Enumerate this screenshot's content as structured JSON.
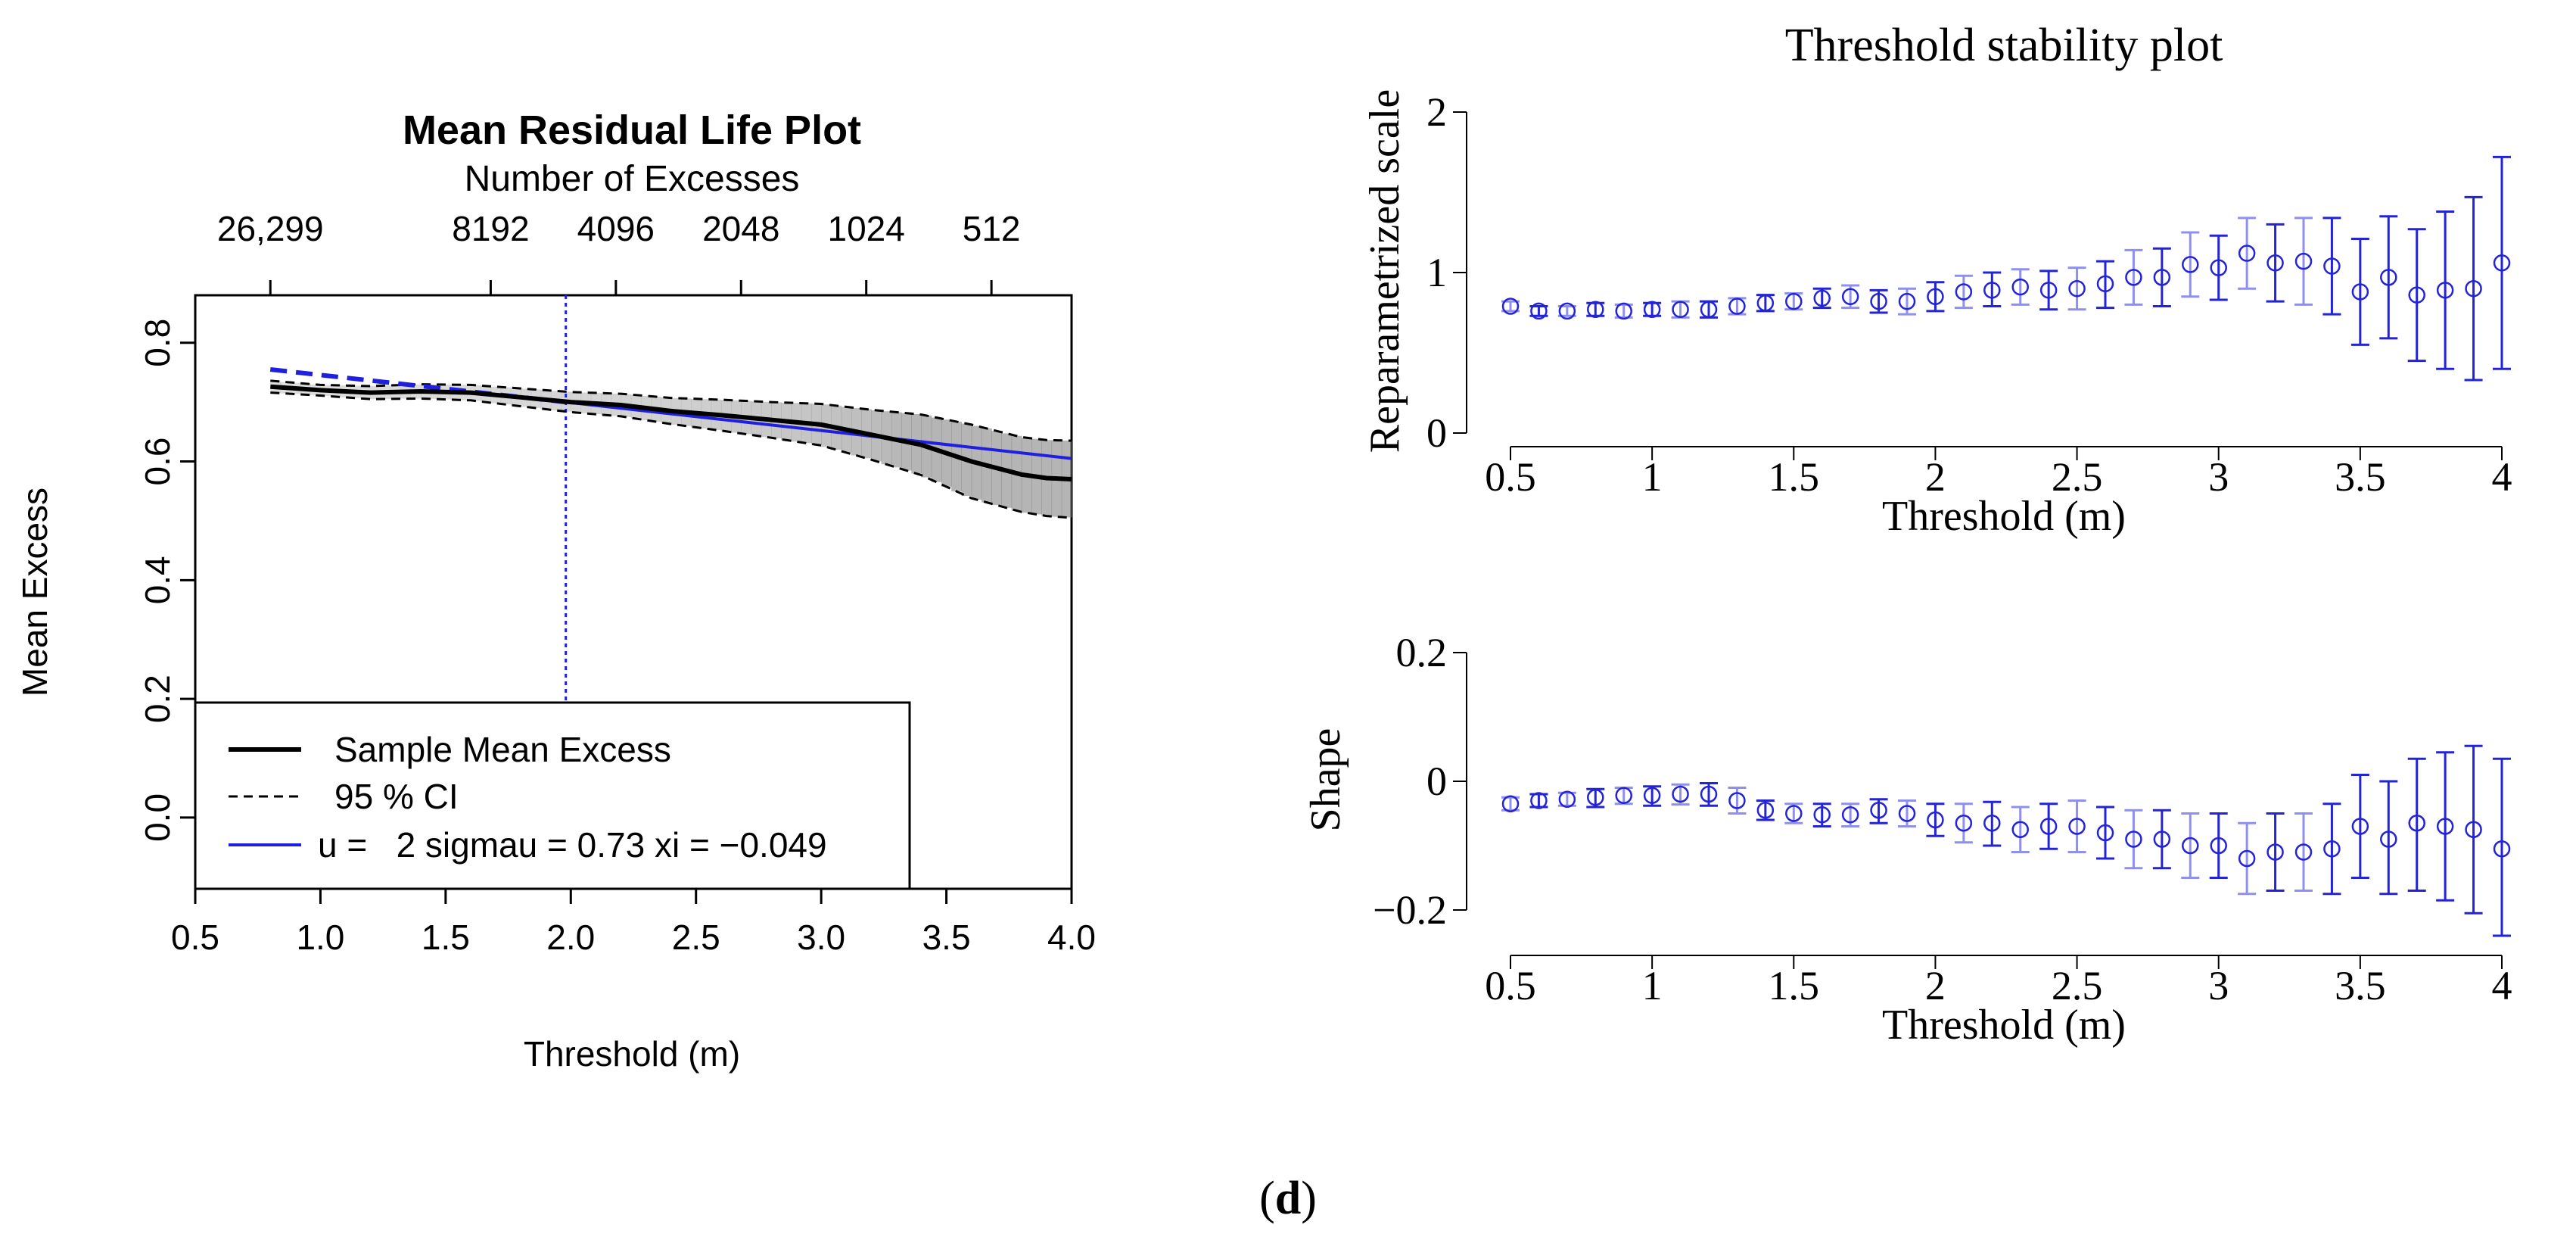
{
  "caption": {
    "open": "(",
    "letter": "d",
    "close": ")"
  },
  "chart_data": [
    {
      "type": "line",
      "title": "Mean Residual Life Plot",
      "top_axis_label": "Number of Excesses",
      "top_axis_ticks": [
        {
          "at": 0.8,
          "label": "26,299"
        },
        {
          "at": 1.68,
          "label": "8192"
        },
        {
          "at": 2.18,
          "label": "4096"
        },
        {
          "at": 2.68,
          "label": "2048"
        },
        {
          "at": 3.18,
          "label": "1024"
        },
        {
          "at": 3.68,
          "label": "512"
        }
      ],
      "xlabel": "Threshold (m)",
      "ylabel": "Mean Excess",
      "xlim": [
        0.5,
        4.0
      ],
      "ylim": [
        -0.12,
        0.88
      ],
      "xticks": [
        0.5,
        1.0,
        1.5,
        2.0,
        2.5,
        3.0,
        3.5,
        4.0
      ],
      "xtick_labels": [
        "0.5",
        "1.0",
        "1.5",
        "2.0",
        "2.5",
        "3.0",
        "3.5",
        "4.0"
      ],
      "yticks": [
        0.0,
        0.2,
        0.4,
        0.6,
        0.8
      ],
      "ytick_labels": [
        "0.0",
        "0.2",
        "0.4",
        "0.6",
        "0.8"
      ],
      "vline_x": 1.98,
      "legend": [
        {
          "label": "Sample Mean Excess",
          "style": "solid",
          "color": "#000000"
        },
        {
          "label": "95 % CI",
          "style": "dashed",
          "color": "#000000"
        },
        {
          "label": "u =   2 sigmau = 0.73 xi = −0.049",
          "style": "solid",
          "color": "#1f1fe0"
        }
      ],
      "legend_position": "bottom-left",
      "series": [
        {
          "name": "Sample Mean Excess",
          "x": [
            0.8,
            1.0,
            1.2,
            1.4,
            1.6,
            1.8,
            2.0,
            2.2,
            2.4,
            2.6,
            2.8,
            3.0,
            3.2,
            3.4,
            3.6,
            3.8,
            3.9,
            4.0
          ],
          "y": [
            0.726,
            0.72,
            0.716,
            0.718,
            0.716,
            0.708,
            0.7,
            0.695,
            0.685,
            0.678,
            0.67,
            0.662,
            0.645,
            0.628,
            0.6,
            0.578,
            0.572,
            0.57
          ]
        },
        {
          "name": "95 % CI lower",
          "x": [
            0.8,
            1.0,
            1.2,
            1.4,
            1.6,
            1.8,
            2.0,
            2.2,
            2.4,
            2.6,
            2.8,
            3.0,
            3.2,
            3.4,
            3.6,
            3.8,
            3.9,
            4.0
          ],
          "y": [
            0.716,
            0.711,
            0.705,
            0.706,
            0.703,
            0.693,
            0.683,
            0.676,
            0.663,
            0.652,
            0.64,
            0.627,
            0.603,
            0.577,
            0.538,
            0.515,
            0.508,
            0.505
          ]
        },
        {
          "name": "95 % CI upper",
          "x": [
            0.8,
            1.0,
            1.2,
            1.4,
            1.6,
            1.8,
            2.0,
            2.2,
            2.4,
            2.6,
            2.8,
            3.0,
            3.2,
            3.4,
            3.6,
            3.8,
            3.9,
            4.0
          ],
          "y": [
            0.736,
            0.729,
            0.727,
            0.73,
            0.729,
            0.723,
            0.717,
            0.714,
            0.707,
            0.704,
            0.7,
            0.697,
            0.687,
            0.679,
            0.662,
            0.641,
            0.636,
            0.635
          ]
        },
        {
          "name": "Fitted GPD mean excess",
          "x": [
            0.8,
            1.98,
            4.0
          ],
          "y": [
            0.755,
            0.7,
            0.605
          ],
          "dashed_until": 1.98
        }
      ]
    },
    {
      "type": "scatter",
      "title": "Threshold stability plot",
      "panels": [
        {
          "ylabel": "Reparametrized scale",
          "xlabel": "Threshold (m)",
          "xlim": [
            0.5,
            4.0
          ],
          "ylim": [
            0,
            2
          ],
          "xticks": [
            0.5,
            1,
            1.5,
            2,
            2.5,
            3,
            3.5,
            4
          ],
          "xtick_labels": [
            "0.5",
            "1",
            "1.5",
            "2",
            "2.5",
            "3",
            "3.5",
            "4"
          ],
          "yticks": [
            0,
            1,
            2
          ],
          "ytick_labels": [
            "0",
            "1",
            "2"
          ],
          "x": [
            0.5,
            0.6,
            0.7,
            0.8,
            0.9,
            1.0,
            1.1,
            1.2,
            1.3,
            1.4,
            1.5,
            1.6,
            1.7,
            1.8,
            1.9,
            2.0,
            2.1,
            2.2,
            2.3,
            2.4,
            2.5,
            2.6,
            2.7,
            2.8,
            2.9,
            3.0,
            3.1,
            3.2,
            3.3,
            3.4,
            3.5,
            3.6,
            3.7,
            3.8,
            3.9,
            4.0
          ],
          "y": [
            0.79,
            0.76,
            0.76,
            0.77,
            0.76,
            0.77,
            0.77,
            0.77,
            0.79,
            0.81,
            0.82,
            0.84,
            0.85,
            0.82,
            0.82,
            0.85,
            0.88,
            0.89,
            0.91,
            0.89,
            0.9,
            0.93,
            0.97,
            0.97,
            1.05,
            1.03,
            1.12,
            1.06,
            1.07,
            1.04,
            0.88,
            0.97,
            0.86,
            0.89,
            0.9,
            1.06
          ],
          "lower": [
            0.76,
            0.73,
            0.73,
            0.73,
            0.72,
            0.73,
            0.72,
            0.72,
            0.74,
            0.76,
            0.77,
            0.78,
            0.78,
            0.75,
            0.74,
            0.76,
            0.78,
            0.79,
            0.8,
            0.77,
            0.77,
            0.78,
            0.8,
            0.79,
            0.85,
            0.83,
            0.9,
            0.82,
            0.8,
            0.74,
            0.55,
            0.59,
            0.45,
            0.4,
            0.33,
            0.4
          ],
          "upper": [
            0.82,
            0.79,
            0.79,
            0.81,
            0.8,
            0.81,
            0.82,
            0.82,
            0.84,
            0.86,
            0.87,
            0.9,
            0.92,
            0.89,
            0.9,
            0.94,
            0.98,
            1.0,
            1.02,
            1.01,
            1.03,
            1.07,
            1.14,
            1.15,
            1.25,
            1.23,
            1.34,
            1.3,
            1.34,
            1.34,
            1.21,
            1.35,
            1.27,
            1.38,
            1.47,
            1.72
          ]
        },
        {
          "ylabel": "Shape",
          "xlabel": "Threshold (m)",
          "xlim": [
            0.5,
            4.0
          ],
          "ylim": [
            -0.2,
            0.2
          ],
          "xticks": [
            0.5,
            1,
            1.5,
            2,
            2.5,
            3,
            3.5,
            4
          ],
          "xtick_labels": [
            "0.5",
            "1",
            "1.5",
            "2",
            "2.5",
            "3",
            "3.5",
            "4"
          ],
          "yticks": [
            -0.2,
            0,
            0.2
          ],
          "ytick_labels": [
            "−0.2",
            "0",
            "0.2"
          ],
          "x": [
            0.5,
            0.6,
            0.7,
            0.8,
            0.9,
            1.0,
            1.1,
            1.2,
            1.3,
            1.4,
            1.5,
            1.6,
            1.7,
            1.8,
            1.9,
            2.0,
            2.1,
            2.2,
            2.3,
            2.4,
            2.5,
            2.6,
            2.7,
            2.8,
            2.9,
            3.0,
            3.1,
            3.2,
            3.3,
            3.4,
            3.5,
            3.6,
            3.7,
            3.8,
            3.9,
            4.0
          ],
          "y": [
            -0.035,
            -0.03,
            -0.028,
            -0.025,
            -0.022,
            -0.022,
            -0.02,
            -0.02,
            -0.03,
            -0.045,
            -0.05,
            -0.052,
            -0.052,
            -0.045,
            -0.05,
            -0.06,
            -0.065,
            -0.065,
            -0.075,
            -0.07,
            -0.07,
            -0.08,
            -0.09,
            -0.09,
            -0.1,
            -0.1,
            -0.12,
            -0.11,
            -0.11,
            -0.105,
            -0.07,
            -0.09,
            -0.065,
            -0.07,
            -0.075,
            -0.105
          ],
          "lower": [
            -0.045,
            -0.04,
            -0.038,
            -0.04,
            -0.035,
            -0.038,
            -0.036,
            -0.038,
            -0.05,
            -0.06,
            -0.065,
            -0.07,
            -0.07,
            -0.065,
            -0.07,
            -0.085,
            -0.095,
            -0.1,
            -0.11,
            -0.105,
            -0.11,
            -0.12,
            -0.135,
            -0.135,
            -0.15,
            -0.15,
            -0.175,
            -0.17,
            -0.17,
            -0.175,
            -0.15,
            -0.175,
            -0.17,
            -0.185,
            -0.205,
            -0.24
          ],
          "upper": [
            -0.025,
            -0.02,
            -0.018,
            -0.012,
            -0.01,
            -0.008,
            -0.005,
            -0.003,
            -0.01,
            -0.03,
            -0.035,
            -0.035,
            -0.035,
            -0.028,
            -0.03,
            -0.035,
            -0.035,
            -0.032,
            -0.04,
            -0.035,
            -0.03,
            -0.04,
            -0.045,
            -0.045,
            -0.05,
            -0.05,
            -0.065,
            -0.05,
            -0.05,
            -0.035,
            0.01,
            0.0,
            0.035,
            0.045,
            0.055,
            0.035
          ]
        }
      ]
    }
  ]
}
